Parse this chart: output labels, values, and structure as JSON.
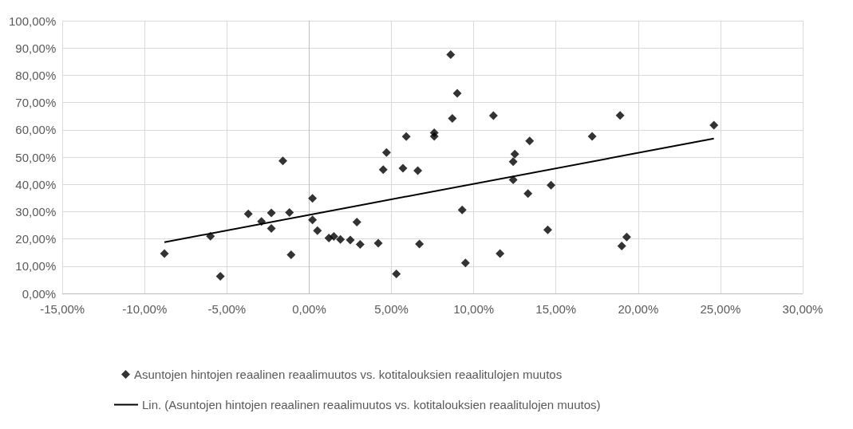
{
  "chart_data": {
    "type": "scatter",
    "xlim": [
      -15,
      30
    ],
    "xticks": [
      {
        "value": -15,
        "label": "-15,00%"
      },
      {
        "value": -10,
        "label": "-10,00%"
      },
      {
        "value": -5,
        "label": "-5,00%"
      },
      {
        "value": 0,
        "label": "0,00%"
      },
      {
        "value": 5,
        "label": "5,00%"
      },
      {
        "value": 10,
        "label": "10,00%"
      },
      {
        "value": 15,
        "label": "15,00%"
      },
      {
        "value": 20,
        "label": "20,00%"
      },
      {
        "value": 25,
        "label": "25,00%"
      },
      {
        "value": 30,
        "label": "30,00%"
      }
    ],
    "ylim": [
      0,
      100
    ],
    "yticks": [
      {
        "value": 0,
        "label": "0,00%"
      },
      {
        "value": 10,
        "label": "10,00%"
      },
      {
        "value": 20,
        "label": "20,00%"
      },
      {
        "value": 30,
        "label": "30,00%"
      },
      {
        "value": 40,
        "label": "40,00%"
      },
      {
        "value": 50,
        "label": "50,00%"
      },
      {
        "value": 60,
        "label": "60,00%"
      },
      {
        "value": 70,
        "label": "70,00%"
      },
      {
        "value": 80,
        "label": "80,00%"
      },
      {
        "value": 90,
        "label": "90,00%"
      },
      {
        "value": 100,
        "label": "100,00%"
      }
    ],
    "grid": true,
    "legend": "bottom",
    "marker": "diamond",
    "series": [
      {
        "name": "Asuntojen hintojen reaalinen reaalimuutos vs. kotitalouksien reaalitulojen muutos",
        "color": "#000000",
        "x": [
          -8.8,
          -6.0,
          -5.4,
          -3.7,
          -2.9,
          -2.3,
          -2.3,
          -1.6,
          -1.2,
          -1.1,
          0.2,
          0.2,
          0.5,
          1.2,
          1.5,
          1.9,
          2.5,
          2.9,
          3.1,
          4.2,
          4.5,
          4.7,
          8.6,
          9.0,
          8.7,
          11.2,
          5.9,
          7.6,
          7.6,
          17.2,
          13.4,
          12.5,
          12.4,
          5.7,
          6.6,
          12.4,
          14.7,
          13.3,
          9.3,
          14.5,
          6.7,
          11.6,
          9.5,
          5.3,
          18.9,
          24.6,
          19.3,
          19.0
        ],
        "values": [
          14.6,
          21.0,
          6.3,
          29.2,
          26.4,
          23.8,
          29.5,
          48.6,
          29.7,
          14.2,
          34.9,
          27.0,
          23.0,
          20.3,
          20.9,
          19.8,
          19.6,
          26.2,
          18.0,
          18.4,
          45.4,
          51.7,
          87.6,
          73.4,
          64.2,
          65.2,
          57.5,
          58.9,
          57.6,
          57.6,
          55.9,
          51.1,
          48.3,
          45.9,
          45.0,
          41.7,
          39.7,
          36.6,
          30.6,
          23.3,
          18.1,
          14.6,
          11.2,
          7.2,
          65.3,
          61.7,
          20.7,
          17.4
        ]
      },
      {
        "name": "Lin. (Asuntojen hintojen reaalinen reaalimuutos vs. kotitalouksien reaalitulojen muutos)",
        "type": "line",
        "color": "#000000",
        "marker": "none",
        "line_style": "solid",
        "x": [
          -8.8,
          24.6
        ],
        "values": [
          18.8,
          56.8
        ]
      }
    ]
  }
}
